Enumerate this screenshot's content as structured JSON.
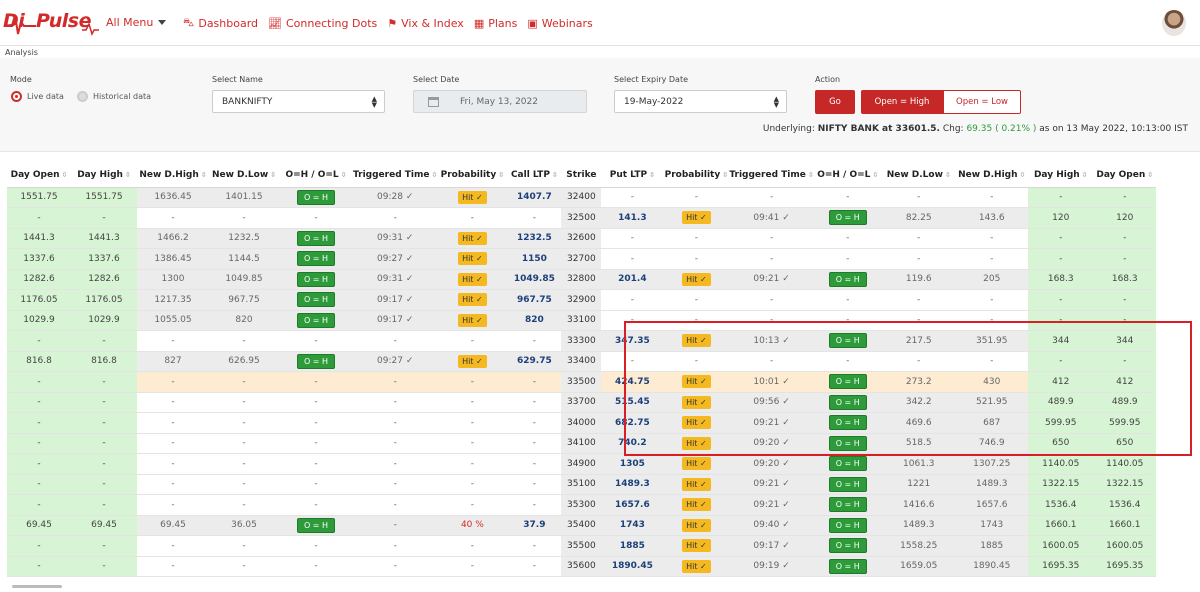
{
  "brand": {
    "logo_text": "Pulse",
    "logo_prefix": "Di"
  },
  "menu": {
    "all_menu": "All Menu"
  },
  "nav": [
    {
      "label": "Dashboard",
      "icon": "car-icon"
    },
    {
      "label": "Connecting Dots",
      "icon": "line-chart-icon"
    },
    {
      "label": "Vix & Index",
      "icon": "flag-icon"
    },
    {
      "label": "Plans",
      "icon": "calendar-icon"
    },
    {
      "label": "Webinars",
      "icon": "video-icon"
    }
  ],
  "breadcrumb": "Analysis",
  "filters": {
    "mode_label": "Mode",
    "live": "Live data",
    "historical": "Historical data",
    "name_label": "Select Name",
    "name_value": "BANKNIFTY",
    "date_label": "Select Date",
    "date_value": "Fri, May 13, 2022",
    "expiry_label": "Select Expiry Date",
    "expiry_value": "19-May-2022",
    "action_label": "Action",
    "go": "Go",
    "open_high": "Open = High",
    "open_low": "Open = Low"
  },
  "underlying": {
    "prefix": "Underlying:",
    "name": "NIFTY BANK at 33601.5.",
    "chg_label": "Chg:",
    "chg": "69.35 ( 0.21% )",
    "suffix": "as on 13 May 2022, 10:13:00 IST"
  },
  "columns": [
    "Day Open",
    "Day High",
    "New D.High",
    "New D.Low",
    "O=H / O=L",
    "Triggered Time",
    "Probability",
    "Call LTP",
    "Strike",
    "Put LTP",
    "Probability",
    "Triggered Time",
    "O=H / O=L",
    "New D.Low",
    "New D.High",
    "Day High",
    "Day Open"
  ],
  "rows": [
    {
      "strike": "32400",
      "band": "none",
      "c": [
        "1551.75",
        "1551.75",
        "1636.45",
        "1401.15",
        "O = H",
        "09:28 ✓",
        "Hit ✓",
        "1407.7"
      ],
      "p": [
        "-",
        "-",
        "-",
        "-",
        "-",
        "-",
        "-",
        "-"
      ]
    },
    {
      "strike": "32500",
      "band": "none",
      "c": [
        "-",
        "-",
        "-",
        "-",
        "-",
        "-",
        "-",
        "-"
      ],
      "p": [
        "141.3",
        "Hit ✓",
        "09:41 ✓",
        "O = H",
        "82.25",
        "143.6",
        "120",
        "120"
      ]
    },
    {
      "strike": "32600",
      "band": "none",
      "c": [
        "1441.3",
        "1441.3",
        "1466.2",
        "1232.5",
        "O = H",
        "09:31 ✓",
        "Hit ✓",
        "1232.5"
      ],
      "p": [
        "-",
        "-",
        "-",
        "-",
        "-",
        "-",
        "-",
        "-"
      ]
    },
    {
      "strike": "32700",
      "band": "none",
      "c": [
        "1337.6",
        "1337.6",
        "1386.45",
        "1144.5",
        "O = H",
        "09:27 ✓",
        "Hit ✓",
        "1150"
      ],
      "p": [
        "-",
        "-",
        "-",
        "-",
        "-",
        "-",
        "-",
        "-"
      ]
    },
    {
      "strike": "32800",
      "band": "none",
      "c": [
        "1282.6",
        "1282.6",
        "1300",
        "1049.85",
        "O = H",
        "09:31 ✓",
        "Hit ✓",
        "1049.85"
      ],
      "p": [
        "201.4",
        "Hit ✓",
        "09:21 ✓",
        "O = H",
        "119.6",
        "205",
        "168.3",
        "168.3"
      ]
    },
    {
      "strike": "32900",
      "band": "none",
      "c": [
        "1176.05",
        "1176.05",
        "1217.35",
        "967.75",
        "O = H",
        "09:17 ✓",
        "Hit ✓",
        "967.75"
      ],
      "p": [
        "-",
        "-",
        "-",
        "-",
        "-",
        "-",
        "-",
        "-"
      ]
    },
    {
      "strike": "33100",
      "band": "none",
      "c": [
        "1029.9",
        "1029.9",
        "1055.05",
        "820",
        "O = H",
        "09:17 ✓",
        "Hit ✓",
        "820"
      ],
      "p": [
        "-",
        "-",
        "-",
        "-",
        "-",
        "-",
        "-",
        "-"
      ]
    },
    {
      "strike": "33300",
      "band": "none",
      "c": [
        "-",
        "-",
        "-",
        "-",
        "-",
        "-",
        "-",
        "-"
      ],
      "p": [
        "347.35",
        "Hit ✓",
        "10:13 ✓",
        "O = H",
        "217.5",
        "351.95",
        "344",
        "344"
      ]
    },
    {
      "strike": "33400",
      "band": "none",
      "c": [
        "816.8",
        "816.8",
        "827",
        "626.95",
        "O = H",
        "09:27 ✓",
        "Hit ✓",
        "629.75"
      ],
      "p": [
        "-",
        "-",
        "-",
        "-",
        "-",
        "-",
        "-",
        "-"
      ]
    },
    {
      "strike": "33500",
      "band": "atm",
      "c": [
        "-",
        "-",
        "-",
        "-",
        "-",
        "-",
        "-",
        "-"
      ],
      "p": [
        "424.75",
        "Hit ✓",
        "10:01 ✓",
        "O = H",
        "273.2",
        "430",
        "412",
        "412"
      ]
    },
    {
      "strike": "33700",
      "band": "none",
      "c": [
        "-",
        "-",
        "-",
        "-",
        "-",
        "-",
        "-",
        "-"
      ],
      "p": [
        "515.45",
        "Hit ✓",
        "09:56 ✓",
        "O = H",
        "342.2",
        "521.95",
        "489.9",
        "489.9"
      ]
    },
    {
      "strike": "34000",
      "band": "none",
      "c": [
        "-",
        "-",
        "-",
        "-",
        "-",
        "-",
        "-",
        "-"
      ],
      "p": [
        "682.75",
        "Hit ✓",
        "09:21 ✓",
        "O = H",
        "469.6",
        "687",
        "599.95",
        "599.95"
      ]
    },
    {
      "strike": "34100",
      "band": "none",
      "c": [
        "-",
        "-",
        "-",
        "-",
        "-",
        "-",
        "-",
        "-"
      ],
      "p": [
        "740.2",
        "Hit ✓",
        "09:20 ✓",
        "O = H",
        "518.5",
        "746.9",
        "650",
        "650"
      ]
    },
    {
      "strike": "34900",
      "band": "none",
      "c": [
        "-",
        "-",
        "-",
        "-",
        "-",
        "-",
        "-",
        "-"
      ],
      "p": [
        "1305",
        "Hit ✓",
        "09:20 ✓",
        "O = H",
        "1061.3",
        "1307.25",
        "1140.05",
        "1140.05"
      ]
    },
    {
      "strike": "35100",
      "band": "none",
      "c": [
        "-",
        "-",
        "-",
        "-",
        "-",
        "-",
        "-",
        "-"
      ],
      "p": [
        "1489.3",
        "Hit ✓",
        "09:21 ✓",
        "O = H",
        "1221",
        "1489.3",
        "1322.15",
        "1322.15"
      ]
    },
    {
      "strike": "35300",
      "band": "none",
      "c": [
        "-",
        "-",
        "-",
        "-",
        "-",
        "-",
        "-",
        "-"
      ],
      "p": [
        "1657.6",
        "Hit ✓",
        "09:21 ✓",
        "O = H",
        "1416.6",
        "1657.6",
        "1536.4",
        "1536.4"
      ]
    },
    {
      "strike": "35400",
      "band": "none",
      "c": [
        "69.45",
        "69.45",
        "69.45",
        "36.05",
        "O = H",
        "-",
        "40 %",
        "37.9"
      ],
      "p": [
        "1743",
        "Hit ✓",
        "09:40 ✓",
        "O = H",
        "1489.3",
        "1743",
        "1660.1",
        "1660.1"
      ]
    },
    {
      "strike": "35500",
      "band": "none",
      "c": [
        "-",
        "-",
        "-",
        "-",
        "-",
        "-",
        "-",
        "-"
      ],
      "p": [
        "1885",
        "Hit ✓",
        "09:17 ✓",
        "O = H",
        "1558.25",
        "1885",
        "1600.05",
        "1600.05"
      ]
    },
    {
      "strike": "35600",
      "band": "none",
      "c": [
        "-",
        "-",
        "-",
        "-",
        "-",
        "-",
        "-",
        "-"
      ],
      "p": [
        "1890.45",
        "Hit ✓",
        "09:19 ✓",
        "O = H",
        "1659.05",
        "1890.45",
        "1695.35",
        "1695.35"
      ]
    }
  ],
  "colors": {
    "accent": "#d32a2a",
    "green_cell": "#d7f5d4",
    "hit": "#f4b920",
    "oeq": "#2e9b3a",
    "ltp": "#1d3f7a"
  }
}
